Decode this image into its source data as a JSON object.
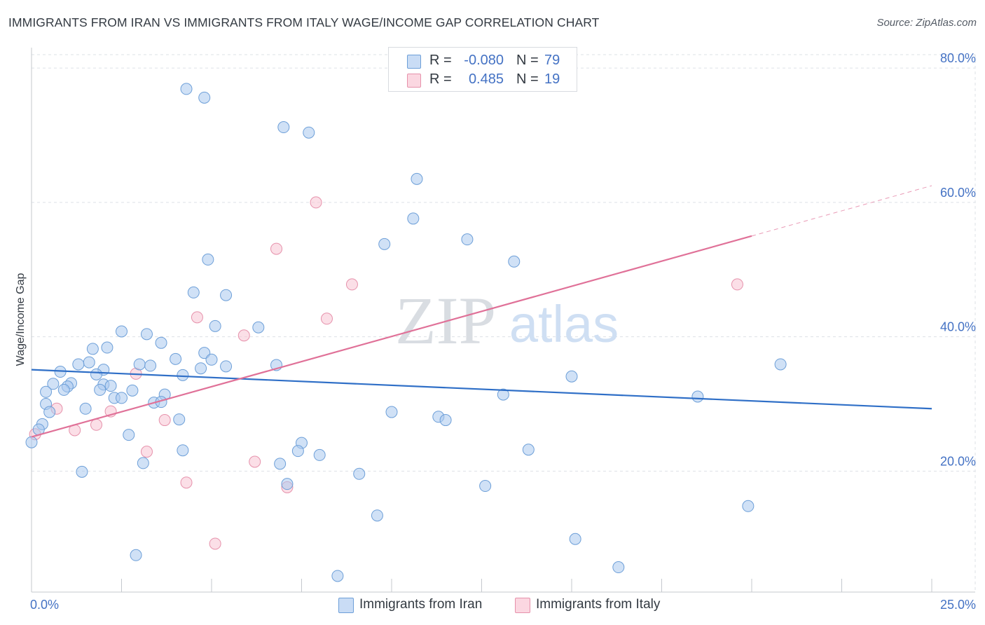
{
  "title": "IMMIGRANTS FROM IRAN VS IMMIGRANTS FROM ITALY WAGE/INCOME GAP CORRELATION CHART",
  "source": "Source: ZipAtlas.com",
  "watermark": {
    "zip": "ZIP",
    "atlas": "atlas"
  },
  "legend": {
    "series1": {
      "r_label": "R =",
      "r_value": "-0.080",
      "n_label": "N =",
      "n_value": "79"
    },
    "series2": {
      "r_label": "R =",
      "r_value": "0.485",
      "n_label": "N =",
      "n_value": "19"
    }
  },
  "bottom_legend": {
    "series1": "Immigrants from Iran",
    "series2": "Immigrants from Italy"
  },
  "colors": {
    "iran_fill": "#aac8ee",
    "iran_stroke": "#6d9fd8",
    "iran_line": "#2f6fc7",
    "italy_fill": "#f7c5d3",
    "italy_stroke": "#e691ab",
    "italy_line": "#e07198",
    "axis_text": "#4472c4",
    "grid": "#dde1e6"
  },
  "chart_data": {
    "type": "scatter",
    "title": "IMMIGRANTS FROM IRAN VS IMMIGRANTS FROM ITALY WAGE/INCOME GAP CORRELATION CHART",
    "xlabel": "",
    "ylabel": "Wage/Income Gap",
    "xlim": [
      0,
      25
    ],
    "ylim": [
      2,
      82
    ],
    "x_tick_labels": [
      "0.0%",
      "25.0%"
    ],
    "y_ticks": [
      20,
      40,
      60,
      80
    ],
    "y_tick_labels": [
      "20.0%",
      "40.0%",
      "60.0%",
      "80.0%"
    ],
    "grid": true,
    "legend_position": "top-center",
    "series": [
      {
        "name": "Immigrants from Iran",
        "R": -0.08,
        "N": 79,
        "trend": {
          "x": [
            0,
            25
          ],
          "y": [
            35.1,
            29.3
          ]
        },
        "points": [
          [
            4.3,
            76.9
          ],
          [
            4.8,
            75.6
          ],
          [
            7.0,
            71.2
          ],
          [
            7.7,
            70.4
          ],
          [
            10.7,
            63.5
          ],
          [
            10.6,
            57.6
          ],
          [
            9.8,
            53.8
          ],
          [
            12.1,
            54.5
          ],
          [
            13.4,
            51.2
          ],
          [
            4.9,
            51.5
          ],
          [
            4.5,
            46.6
          ],
          [
            5.4,
            46.2
          ],
          [
            5.1,
            41.6
          ],
          [
            6.3,
            41.4
          ],
          [
            2.5,
            40.8
          ],
          [
            3.2,
            40.4
          ],
          [
            3.6,
            39.1
          ],
          [
            1.7,
            38.2
          ],
          [
            2.1,
            38.4
          ],
          [
            4.8,
            37.6
          ],
          [
            1.6,
            36.2
          ],
          [
            2.0,
            35.1
          ],
          [
            1.3,
            35.9
          ],
          [
            3.0,
            35.9
          ],
          [
            3.3,
            35.7
          ],
          [
            4.0,
            36.7
          ],
          [
            4.7,
            35.3
          ],
          [
            5.0,
            36.6
          ],
          [
            5.4,
            35.6
          ],
          [
            6.8,
            35.8
          ],
          [
            20.8,
            35.9
          ],
          [
            0.8,
            34.8
          ],
          [
            1.8,
            34.4
          ],
          [
            4.2,
            34.3
          ],
          [
            15.0,
            34.1
          ],
          [
            0.6,
            33.0
          ],
          [
            1.1,
            33.1
          ],
          [
            1.0,
            32.6
          ],
          [
            2.0,
            32.9
          ],
          [
            2.2,
            32.7
          ],
          [
            0.9,
            32.1
          ],
          [
            1.9,
            32.1
          ],
          [
            2.8,
            32.0
          ],
          [
            0.4,
            31.8
          ],
          [
            2.3,
            30.9
          ],
          [
            2.5,
            30.9
          ],
          [
            3.7,
            31.4
          ],
          [
            3.4,
            30.2
          ],
          [
            3.6,
            30.3
          ],
          [
            0.4,
            30.0
          ],
          [
            13.1,
            31.4
          ],
          [
            18.5,
            31.1
          ],
          [
            1.5,
            29.3
          ],
          [
            0.5,
            28.8
          ],
          [
            10.0,
            28.8
          ],
          [
            11.3,
            28.1
          ],
          [
            11.5,
            27.6
          ],
          [
            4.1,
            27.7
          ],
          [
            0.3,
            27.0
          ],
          [
            0.2,
            26.2
          ],
          [
            2.7,
            25.4
          ],
          [
            7.5,
            24.2
          ],
          [
            4.2,
            23.1
          ],
          [
            7.4,
            23.0
          ],
          [
            8.0,
            22.4
          ],
          [
            13.8,
            23.2
          ],
          [
            3.1,
            21.2
          ],
          [
            6.9,
            21.1
          ],
          [
            1.4,
            19.9
          ],
          [
            9.1,
            19.6
          ],
          [
            7.1,
            18.1
          ],
          [
            12.6,
            17.8
          ],
          [
            9.6,
            13.4
          ],
          [
            19.9,
            14.8
          ],
          [
            15.1,
            9.9
          ],
          [
            2.9,
            7.5
          ],
          [
            16.3,
            5.7
          ],
          [
            8.5,
            4.4
          ],
          [
            0.0,
            24.3
          ]
        ]
      },
      {
        "name": "Immigrants from Italy",
        "R": 0.485,
        "N": 19,
        "trend": {
          "x": [
            0,
            20
          ],
          "y": [
            25.1,
            55.0
          ]
        },
        "trend_dashed_extension": {
          "x": [
            20,
            25
          ],
          "y": [
            55.0,
            62.5
          ]
        },
        "points": [
          [
            7.9,
            60.0
          ],
          [
            6.8,
            53.1
          ],
          [
            8.9,
            47.8
          ],
          [
            19.6,
            47.8
          ],
          [
            4.6,
            42.9
          ],
          [
            8.2,
            42.7
          ],
          [
            5.9,
            40.2
          ],
          [
            2.9,
            34.5
          ],
          [
            0.7,
            29.3
          ],
          [
            2.2,
            28.9
          ],
          [
            3.7,
            27.6
          ],
          [
            1.8,
            26.9
          ],
          [
            1.2,
            26.1
          ],
          [
            0.1,
            25.5
          ],
          [
            3.2,
            22.9
          ],
          [
            6.2,
            21.4
          ],
          [
            4.3,
            18.3
          ],
          [
            7.1,
            17.6
          ],
          [
            5.1,
            9.2
          ]
        ]
      }
    ]
  }
}
